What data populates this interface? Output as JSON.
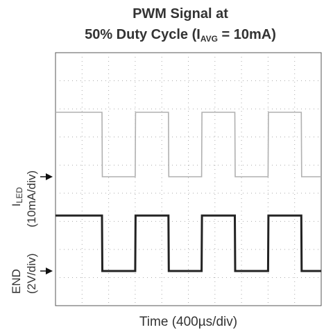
{
  "chart_data": {
    "type": "line",
    "title_line1": "PWM Signal at",
    "title_line2_prefix": "50% Duty Cycle (I",
    "title_line2_sub": "AVG",
    "title_line2_suffix": " = 10mA)",
    "xlabel": "Time (400µs/div)",
    "ylabel_iled_main": "I",
    "ylabel_iled_sub": "LED",
    "ylabel_iled_scale": "(10mA/div)",
    "ylabel_end_main": "END",
    "ylabel_end_scale": "(2V/div)",
    "grid": true,
    "x_divisions": 10,
    "y_divisions": 9,
    "xlim": [
      0,
      4000
    ],
    "series": [
      {
        "name": "ILED",
        "unit": "mA",
        "color": "#b0b0b0",
        "x": [
          0,
          700,
          705,
          1200,
          1205,
          1700,
          1705,
          2200,
          2205,
          2700,
          2705,
          3200,
          3205,
          3700,
          3705,
          4000
        ],
        "y": [
          20,
          20,
          0,
          0,
          20,
          20,
          0,
          0,
          20,
          20,
          0,
          0,
          20,
          20,
          0,
          0
        ]
      },
      {
        "name": "END",
        "unit": "V",
        "color": "#222222",
        "x": [
          0,
          700,
          705,
          1200,
          1205,
          1700,
          1705,
          2200,
          2205,
          2700,
          2705,
          3200,
          3205,
          3700,
          3705,
          4000
        ],
        "y": [
          4,
          4,
          0,
          0,
          4,
          4,
          0,
          0,
          4,
          4,
          0,
          0,
          4,
          4,
          0,
          0
        ]
      }
    ]
  }
}
